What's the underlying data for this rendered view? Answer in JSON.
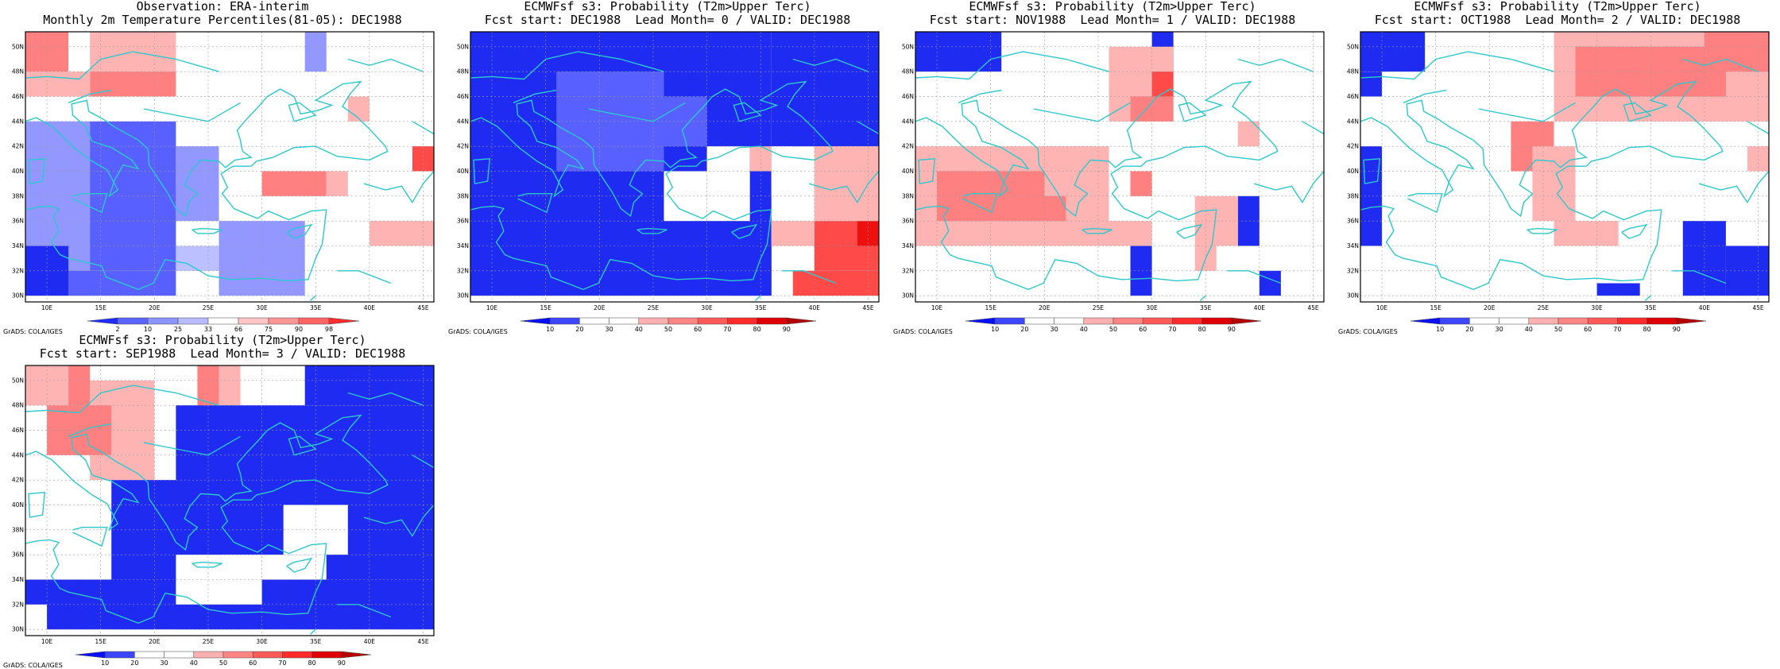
{
  "credit": "GrADS: COLA/IGES",
  "map": {
    "lon_labels": [
      "10E",
      "15E",
      "20E",
      "25E",
      "30E",
      "35E",
      "40E",
      "45E"
    ],
    "lat_labels": [
      "30N",
      "32N",
      "34N",
      "36N",
      "38N",
      "40N",
      "42N",
      "44N",
      "46N",
      "48N",
      "50N"
    ],
    "lon_range": [
      8,
      46
    ],
    "lat_range": [
      29.5,
      51.2
    ]
  },
  "colors": {
    "coast": "#2cc8cc",
    "grid": "#9a9a9a",
    "obs_bar": [
      "#1f2bff",
      "#5a64ff",
      "#8d93ff",
      "#b8bcff",
      "#ffffff",
      "#ffc4c4",
      "#ff9696",
      "#ff6464",
      "#ff2e2e"
    ],
    "fc_bar": [
      "#0a10f5",
      "#3c46ff",
      "#ffffff",
      "#ffffff",
      "#ffb0b0",
      "#ff8484",
      "#ff5a5a",
      "#ff2a2a",
      "#e00000",
      "#b50000"
    ]
  },
  "panels": [
    {
      "title1": "Observation: ERA-interim",
      "title2": "Monthly 2m Temperature Percentiles(81-05): DEC1988",
      "bar": "obs",
      "bar_labels": [
        "2",
        "10",
        "25",
        "33",
        "66",
        "75",
        "90",
        "98"
      ]
    },
    {
      "title1": "ECMWFsf s3: Probability (T2m>Upper Terc)",
      "title2": "Fcst start: DEC1988  Lead Month= 0 / VALID: DEC1988",
      "bar": "fc",
      "bar_labels": [
        "10",
        "20",
        "30",
        "40",
        "50",
        "60",
        "70",
        "80",
        "90"
      ]
    },
    {
      "title1": "ECMWFsf s3: Probability (T2m>Upper Terc)",
      "title2": "Fcst start: NOV1988  Lead Month= 1 / VALID: DEC1988",
      "bar": "fc",
      "bar_labels": [
        "10",
        "20",
        "30",
        "40",
        "50",
        "60",
        "70",
        "80",
        "90"
      ]
    },
    {
      "title1": "ECMWFsf s3: Probability (T2m>Upper Terc)",
      "title2": "Fcst start: OCT1988  Lead Month= 2 / VALID: DEC1988",
      "bar": "fc",
      "bar_labels": [
        "10",
        "20",
        "30",
        "40",
        "50",
        "60",
        "70",
        "80",
        "90"
      ]
    },
    {
      "title1": "ECMWFsf s3: Probability (T2m>Upper Terc)",
      "title2": "Fcst start: SEP1988  Lead Month= 3 / VALID: DEC1988",
      "bar": "fc",
      "bar_labels": [
        "10",
        "20",
        "30",
        "40",
        "50",
        "60",
        "70",
        "80",
        "90"
      ]
    }
  ]
}
